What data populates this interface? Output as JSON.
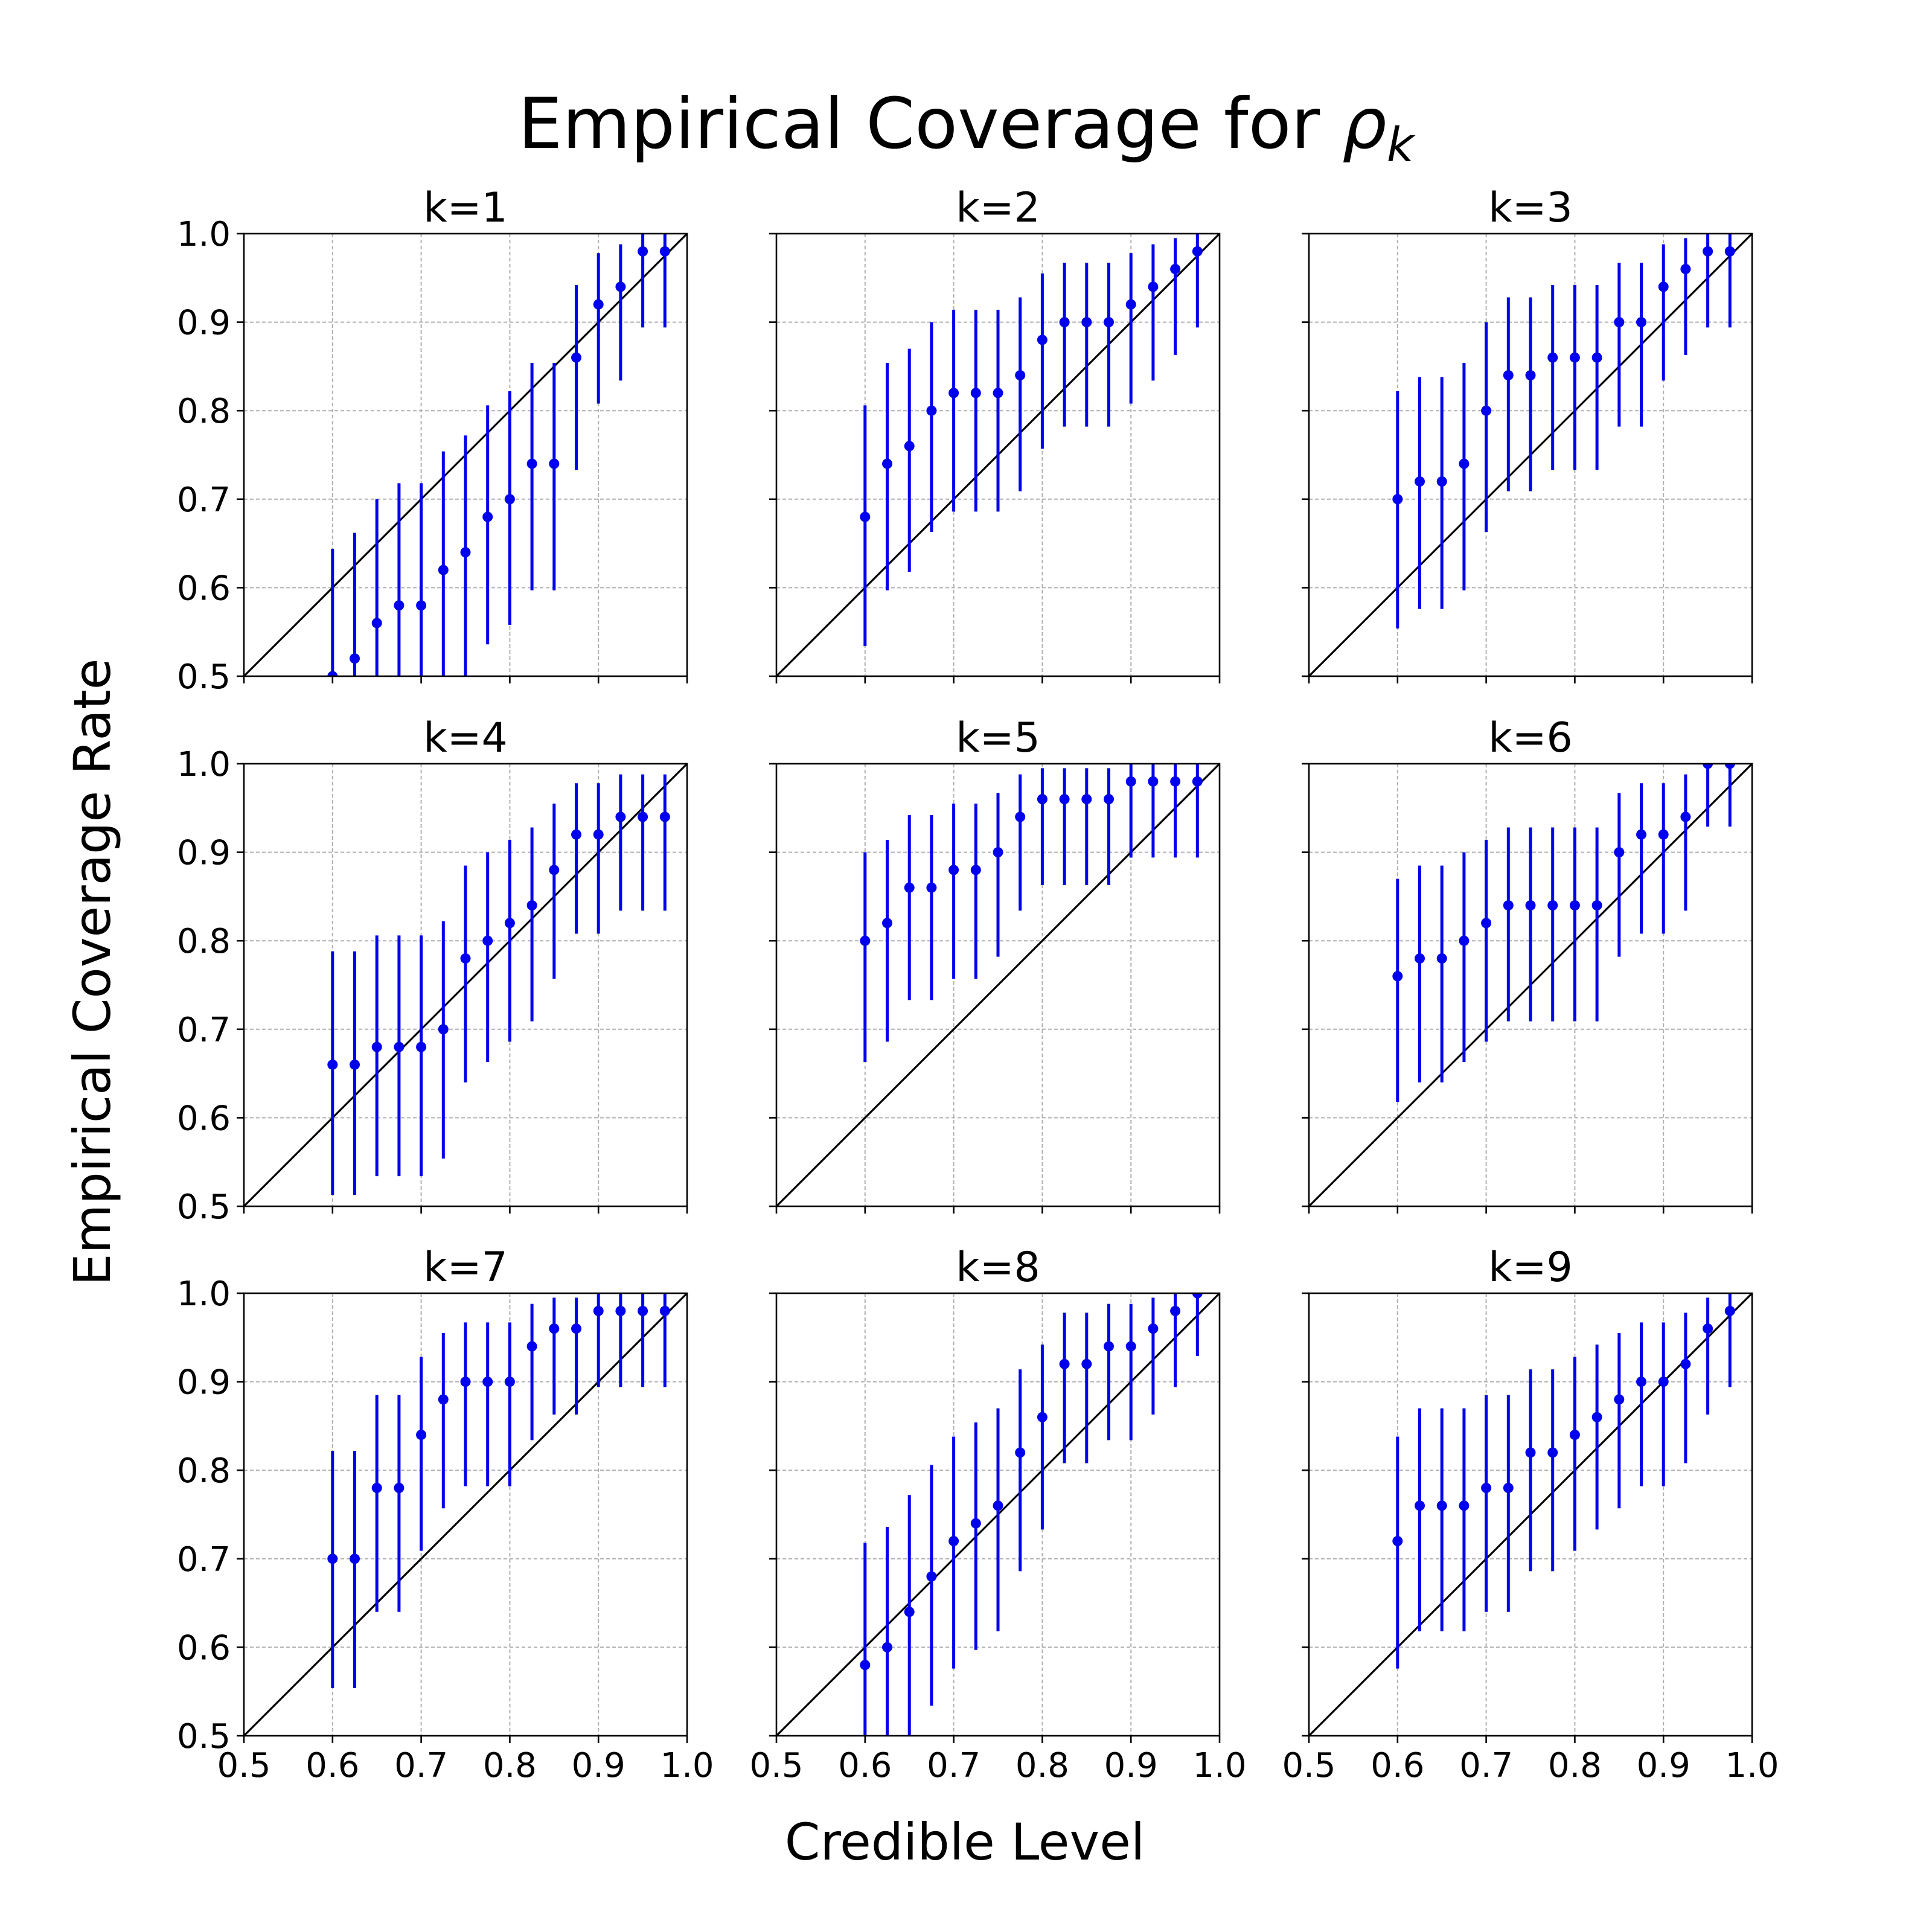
{
  "figure": {
    "title_text": "Empirical Coverage for ",
    "title_symbol": "ρ",
    "title_subscript": "k",
    "xlabel": "Credible Level",
    "ylabel": "Empirical Coverage Rate"
  },
  "chart_data": {
    "type": "scatter",
    "series_color": "#0000ee",
    "reference_line": {
      "from": [
        0.5,
        0.5
      ],
      "to": [
        1.0,
        1.0
      ],
      "color": "#000000"
    },
    "xlim": [
      0.5,
      1.0
    ],
    "ylim": [
      0.5,
      1.0
    ],
    "xticks": [
      "0.5",
      "0.6",
      "0.7",
      "0.8",
      "0.9",
      "1.0"
    ],
    "yticks": [
      "0.5",
      "0.6",
      "0.7",
      "0.8",
      "0.9",
      "1.0"
    ],
    "grid": true,
    "x": [
      0.6,
      0.625,
      0.65,
      0.675,
      0.7,
      0.725,
      0.75,
      0.775,
      0.8,
      0.825,
      0.85,
      0.875,
      0.9,
      0.925,
      0.95,
      0.975
    ],
    "panels": [
      {
        "title": "k=1",
        "y": [
          0.5,
          0.52,
          0.56,
          0.58,
          0.58,
          0.62,
          0.64,
          0.68,
          0.7,
          0.74,
          0.74,
          0.86,
          0.92,
          0.94,
          0.98,
          0.98
        ],
        "low": [
          0.356,
          0.376,
          0.414,
          0.434,
          0.434,
          0.476,
          0.498,
          0.536,
          0.558,
          0.597,
          0.597,
          0.733,
          0.808,
          0.834,
          0.894,
          0.894
        ],
        "high": [
          0.644,
          0.662,
          0.7,
          0.718,
          0.718,
          0.754,
          0.772,
          0.806,
          0.822,
          0.854,
          0.854,
          0.942,
          0.978,
          0.988,
          1.0,
          1.0
        ]
      },
      {
        "title": "k=2",
        "y": [
          0.68,
          0.74,
          0.76,
          0.8,
          0.82,
          0.82,
          0.82,
          0.84,
          0.88,
          0.9,
          0.9,
          0.9,
          0.92,
          0.94,
          0.96,
          0.98
        ],
        "low": [
          0.534,
          0.597,
          0.618,
          0.663,
          0.686,
          0.686,
          0.686,
          0.709,
          0.757,
          0.782,
          0.782,
          0.782,
          0.808,
          0.834,
          0.863,
          0.894
        ],
        "high": [
          0.806,
          0.854,
          0.87,
          0.9,
          0.914,
          0.914,
          0.914,
          0.928,
          0.955,
          0.967,
          0.967,
          0.967,
          0.978,
          0.988,
          0.995,
          1.0
        ]
      },
      {
        "title": "k=3",
        "y": [
          0.7,
          0.72,
          0.72,
          0.74,
          0.8,
          0.84,
          0.84,
          0.86,
          0.86,
          0.86,
          0.9,
          0.9,
          0.94,
          0.96,
          0.98,
          0.98
        ],
        "low": [
          0.554,
          0.576,
          0.576,
          0.597,
          0.663,
          0.709,
          0.709,
          0.733,
          0.733,
          0.733,
          0.782,
          0.782,
          0.834,
          0.863,
          0.894,
          0.894
        ],
        "high": [
          0.822,
          0.838,
          0.838,
          0.854,
          0.9,
          0.928,
          0.928,
          0.942,
          0.942,
          0.942,
          0.967,
          0.967,
          0.988,
          0.995,
          1.0,
          1.0
        ]
      },
      {
        "title": "k=4",
        "y": [
          0.66,
          0.66,
          0.68,
          0.68,
          0.68,
          0.7,
          0.78,
          0.8,
          0.82,
          0.84,
          0.88,
          0.92,
          0.92,
          0.94,
          0.94,
          0.94
        ],
        "low": [
          0.513,
          0.513,
          0.534,
          0.534,
          0.534,
          0.554,
          0.64,
          0.663,
          0.686,
          0.709,
          0.757,
          0.808,
          0.808,
          0.834,
          0.834,
          0.834
        ],
        "high": [
          0.788,
          0.788,
          0.806,
          0.806,
          0.806,
          0.822,
          0.885,
          0.9,
          0.914,
          0.928,
          0.955,
          0.978,
          0.978,
          0.988,
          0.988,
          0.988
        ]
      },
      {
        "title": "k=5",
        "y": [
          0.8,
          0.82,
          0.86,
          0.86,
          0.88,
          0.88,
          0.9,
          0.94,
          0.96,
          0.96,
          0.96,
          0.96,
          0.98,
          0.98,
          0.98,
          0.98
        ],
        "low": [
          0.663,
          0.686,
          0.733,
          0.733,
          0.757,
          0.757,
          0.782,
          0.834,
          0.863,
          0.863,
          0.863,
          0.863,
          0.894,
          0.894,
          0.894,
          0.894
        ],
        "high": [
          0.9,
          0.914,
          0.942,
          0.942,
          0.955,
          0.955,
          0.967,
          0.988,
          0.995,
          0.995,
          0.995,
          0.995,
          1.0,
          1.0,
          1.0,
          1.0
        ]
      },
      {
        "title": "k=6",
        "y": [
          0.76,
          0.78,
          0.78,
          0.8,
          0.82,
          0.84,
          0.84,
          0.84,
          0.84,
          0.84,
          0.9,
          0.92,
          0.92,
          0.94,
          1.0,
          1.0
        ],
        "low": [
          0.618,
          0.64,
          0.64,
          0.663,
          0.686,
          0.709,
          0.709,
          0.709,
          0.709,
          0.709,
          0.782,
          0.808,
          0.808,
          0.834,
          0.929,
          0.929
        ],
        "high": [
          0.87,
          0.885,
          0.885,
          0.9,
          0.914,
          0.928,
          0.928,
          0.928,
          0.928,
          0.928,
          0.967,
          0.978,
          0.978,
          0.988,
          1.0,
          1.0
        ]
      },
      {
        "title": "k=7",
        "y": [
          0.7,
          0.7,
          0.78,
          0.78,
          0.84,
          0.88,
          0.9,
          0.9,
          0.9,
          0.94,
          0.96,
          0.96,
          0.98,
          0.98,
          0.98,
          0.98
        ],
        "low": [
          0.554,
          0.554,
          0.64,
          0.64,
          0.709,
          0.757,
          0.782,
          0.782,
          0.782,
          0.834,
          0.863,
          0.863,
          0.894,
          0.894,
          0.894,
          0.894
        ],
        "high": [
          0.822,
          0.822,
          0.885,
          0.885,
          0.928,
          0.955,
          0.967,
          0.967,
          0.967,
          0.988,
          0.995,
          0.995,
          1.0,
          1.0,
          1.0,
          1.0
        ]
      },
      {
        "title": "k=8",
        "y": [
          0.58,
          0.6,
          0.64,
          0.68,
          0.72,
          0.74,
          0.76,
          0.82,
          0.86,
          0.92,
          0.92,
          0.94,
          0.94,
          0.96,
          0.98,
          1.0
        ],
        "low": [
          0.434,
          0.455,
          0.498,
          0.534,
          0.576,
          0.597,
          0.618,
          0.686,
          0.733,
          0.808,
          0.808,
          0.834,
          0.834,
          0.863,
          0.894,
          0.929
        ],
        "high": [
          0.718,
          0.736,
          0.772,
          0.806,
          0.838,
          0.854,
          0.87,
          0.914,
          0.942,
          0.978,
          0.978,
          0.988,
          0.988,
          0.995,
          1.0,
          1.0
        ]
      },
      {
        "title": "k=9",
        "y": [
          0.72,
          0.76,
          0.76,
          0.76,
          0.78,
          0.78,
          0.82,
          0.82,
          0.84,
          0.86,
          0.88,
          0.9,
          0.9,
          0.92,
          0.96,
          0.98
        ],
        "low": [
          0.576,
          0.618,
          0.618,
          0.618,
          0.64,
          0.64,
          0.686,
          0.686,
          0.709,
          0.733,
          0.757,
          0.782,
          0.782,
          0.808,
          0.863,
          0.894
        ],
        "high": [
          0.838,
          0.87,
          0.87,
          0.87,
          0.885,
          0.885,
          0.914,
          0.914,
          0.928,
          0.942,
          0.955,
          0.967,
          0.967,
          0.978,
          0.995,
          1.0
        ]
      }
    ]
  }
}
